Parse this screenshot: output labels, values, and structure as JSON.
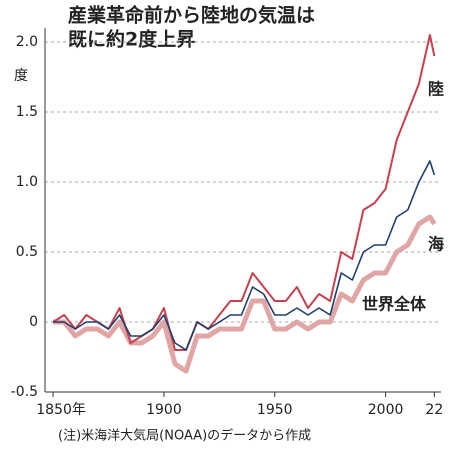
{
  "chart_data": {
    "type": "line",
    "title": "産業革命前から陸地の気温は",
    "subtitle": "既に約2度上昇",
    "y_label": "度",
    "note": "(注)米海洋大気局(NOAA)のデータから作成",
    "x": [
      1850,
      1855,
      1860,
      1865,
      1870,
      1875,
      1880,
      1885,
      1890,
      1895,
      1900,
      1905,
      1910,
      1915,
      1920,
      1925,
      1930,
      1935,
      1940,
      1945,
      1950,
      1955,
      1960,
      1965,
      1970,
      1975,
      1980,
      1985,
      1990,
      1995,
      2000,
      2005,
      2010,
      2015,
      2020,
      2022
    ],
    "series": [
      {
        "name": "海",
        "color": "#e0a6a6",
        "width": 5,
        "values": [
          0.0,
          0.0,
          -0.1,
          -0.05,
          -0.05,
          -0.1,
          0.0,
          -0.15,
          -0.15,
          -0.1,
          0.0,
          -0.3,
          -0.35,
          -0.1,
          -0.1,
          -0.05,
          -0.05,
          -0.05,
          0.15,
          0.15,
          -0.05,
          -0.05,
          0.0,
          -0.05,
          0.0,
          0.0,
          0.2,
          0.15,
          0.3,
          0.35,
          0.35,
          0.5,
          0.55,
          0.7,
          0.75,
          0.7
        ]
      },
      {
        "name": "陸",
        "color": "#c8414f",
        "width": 2,
        "values": [
          0.0,
          0.05,
          -0.05,
          0.05,
          0.0,
          -0.05,
          0.1,
          -0.15,
          -0.1,
          -0.05,
          0.1,
          -0.2,
          -0.2,
          0.0,
          -0.05,
          0.05,
          0.15,
          0.15,
          0.35,
          0.25,
          0.15,
          0.15,
          0.25,
          0.1,
          0.2,
          0.15,
          0.5,
          0.45,
          0.8,
          0.85,
          0.95,
          1.3,
          1.5,
          1.7,
          2.05,
          1.9
        ]
      },
      {
        "name": "世界全体",
        "color": "#1f3f6e",
        "width": 1.6,
        "values": [
          0.0,
          0.0,
          -0.05,
          0.0,
          0.0,
          -0.05,
          0.05,
          -0.1,
          -0.1,
          -0.05,
          0.05,
          -0.15,
          -0.2,
          0.0,
          -0.05,
          0.0,
          0.05,
          0.05,
          0.25,
          0.2,
          0.05,
          0.05,
          0.1,
          0.05,
          0.1,
          0.05,
          0.35,
          0.3,
          0.5,
          0.55,
          0.55,
          0.75,
          0.8,
          1.0,
          1.15,
          1.05
        ]
      }
    ],
    "xlim": [
      1845,
      2025
    ],
    "xticks": [
      {
        "value": 1850,
        "label": "1850年"
      },
      1900,
      1950,
      2000,
      {
        "value": 2022,
        "label": "22"
      }
    ],
    "ylim": [
      -0.5,
      2.1
    ],
    "yticks": [
      -0.5,
      0,
      0.5,
      {
        "value": 1,
        "label": "1.0"
      },
      1.5,
      {
        "value": 2,
        "label": "2.0"
      }
    ],
    "grid": true
  }
}
